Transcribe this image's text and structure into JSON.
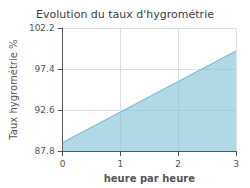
{
  "chart_data": {
    "type": "area",
    "title": "Evolution du taux d'hygrométrie",
    "xlabel": "heure par heure",
    "ylabel": "Taux hygrométrie %",
    "x": [
      0,
      3
    ],
    "values": [
      88.8,
      99.5
    ],
    "color": "#7bbfd4",
    "xlim": [
      0,
      3
    ],
    "ylim": [
      87.8,
      102.2
    ],
    "xticks": [
      0,
      1,
      2,
      3
    ],
    "yticks": [
      87.8,
      92.6,
      97.4,
      102.2
    ],
    "grid": true
  }
}
